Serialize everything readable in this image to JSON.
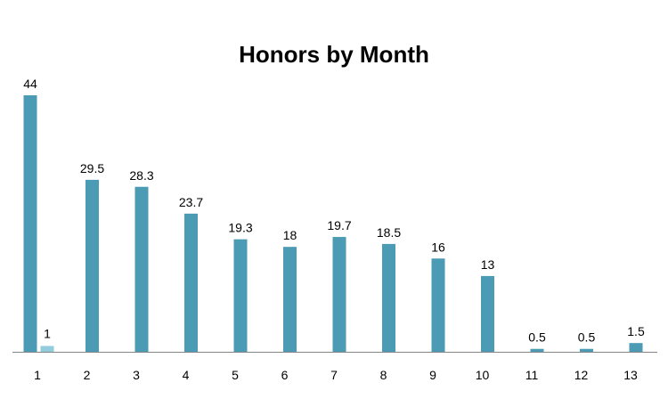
{
  "chart_data": {
    "type": "bar",
    "title": "Honors by Month",
    "xlabel": "",
    "ylabel": "",
    "categories": [
      "1",
      "2",
      "3",
      "4",
      "5",
      "6",
      "7",
      "8",
      "9",
      "10",
      "11",
      "12",
      "13"
    ],
    "series": [
      {
        "values": [
          44,
          29.5,
          28.3,
          23.7,
          19.3,
          18,
          19.7,
          18.5,
          16,
          13,
          0.5,
          0.5,
          1.5
        ],
        "color": "#4A9BB3"
      },
      {
        "values": [
          1,
          null,
          null,
          null,
          null,
          null,
          null,
          null,
          null,
          null,
          null,
          null,
          null
        ],
        "color": "#93CDDD"
      }
    ],
    "data_labels": {
      "primary": [
        "44",
        "29.5",
        "28.3",
        "23.7",
        "19.3",
        "18",
        "19.7",
        "18.5",
        "16",
        "13",
        "0.5",
        "0.5",
        "1.5"
      ],
      "secondary": [
        "1",
        "",
        "",
        "",
        "",
        "",
        "",
        "",
        "",
        "",
        "",
        "",
        ""
      ]
    },
    "ylim": [
      0,
      44
    ],
    "grid": false,
    "legend": "none"
  }
}
